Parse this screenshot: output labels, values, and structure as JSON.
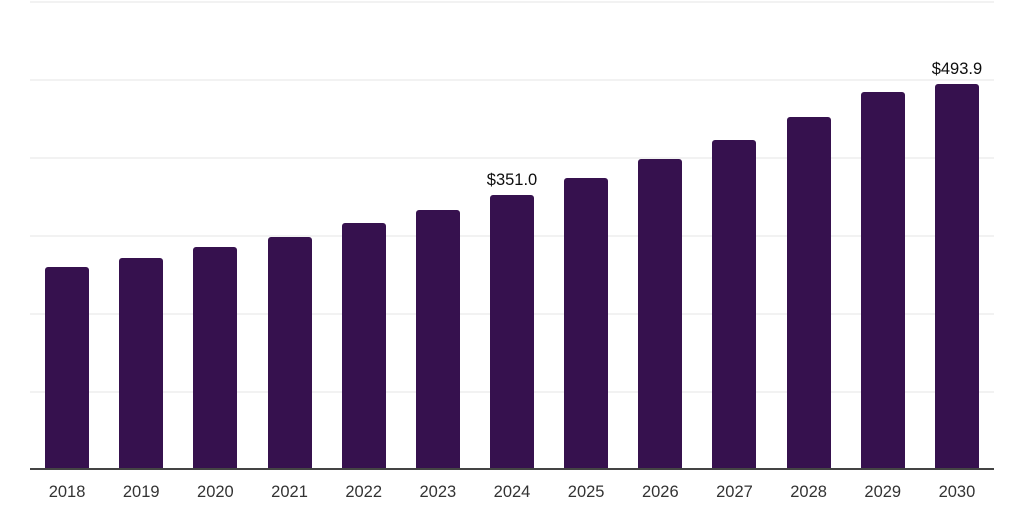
{
  "chart_data": {
    "type": "bar",
    "title": "",
    "xlabel": "",
    "ylabel": "",
    "categories": [
      "2018",
      "2019",
      "2020",
      "2021",
      "2022",
      "2023",
      "2024",
      "2025",
      "2026",
      "2027",
      "2028",
      "2029",
      "2030"
    ],
    "values": [
      259,
      271,
      284,
      298,
      315,
      332,
      351.0,
      373,
      397,
      422,
      451,
      483,
      493.9
    ],
    "data_labels": [
      "",
      "",
      "",
      "",
      "",
      "",
      "$351.0",
      "",
      "",
      "",
      "",
      "",
      "$493.9"
    ],
    "ylim": [
      0,
      600
    ],
    "y_gridline_step": 100,
    "grid": "horizontal-only, no y tick labels",
    "legend_position": "none",
    "colors": {
      "bar_fill": "#36114e",
      "axis_line": "#444444",
      "gridline": "#f2f2f2",
      "tick_label": "#333333",
      "data_label": "#0d0d0d",
      "background": "#ffffff"
    }
  }
}
